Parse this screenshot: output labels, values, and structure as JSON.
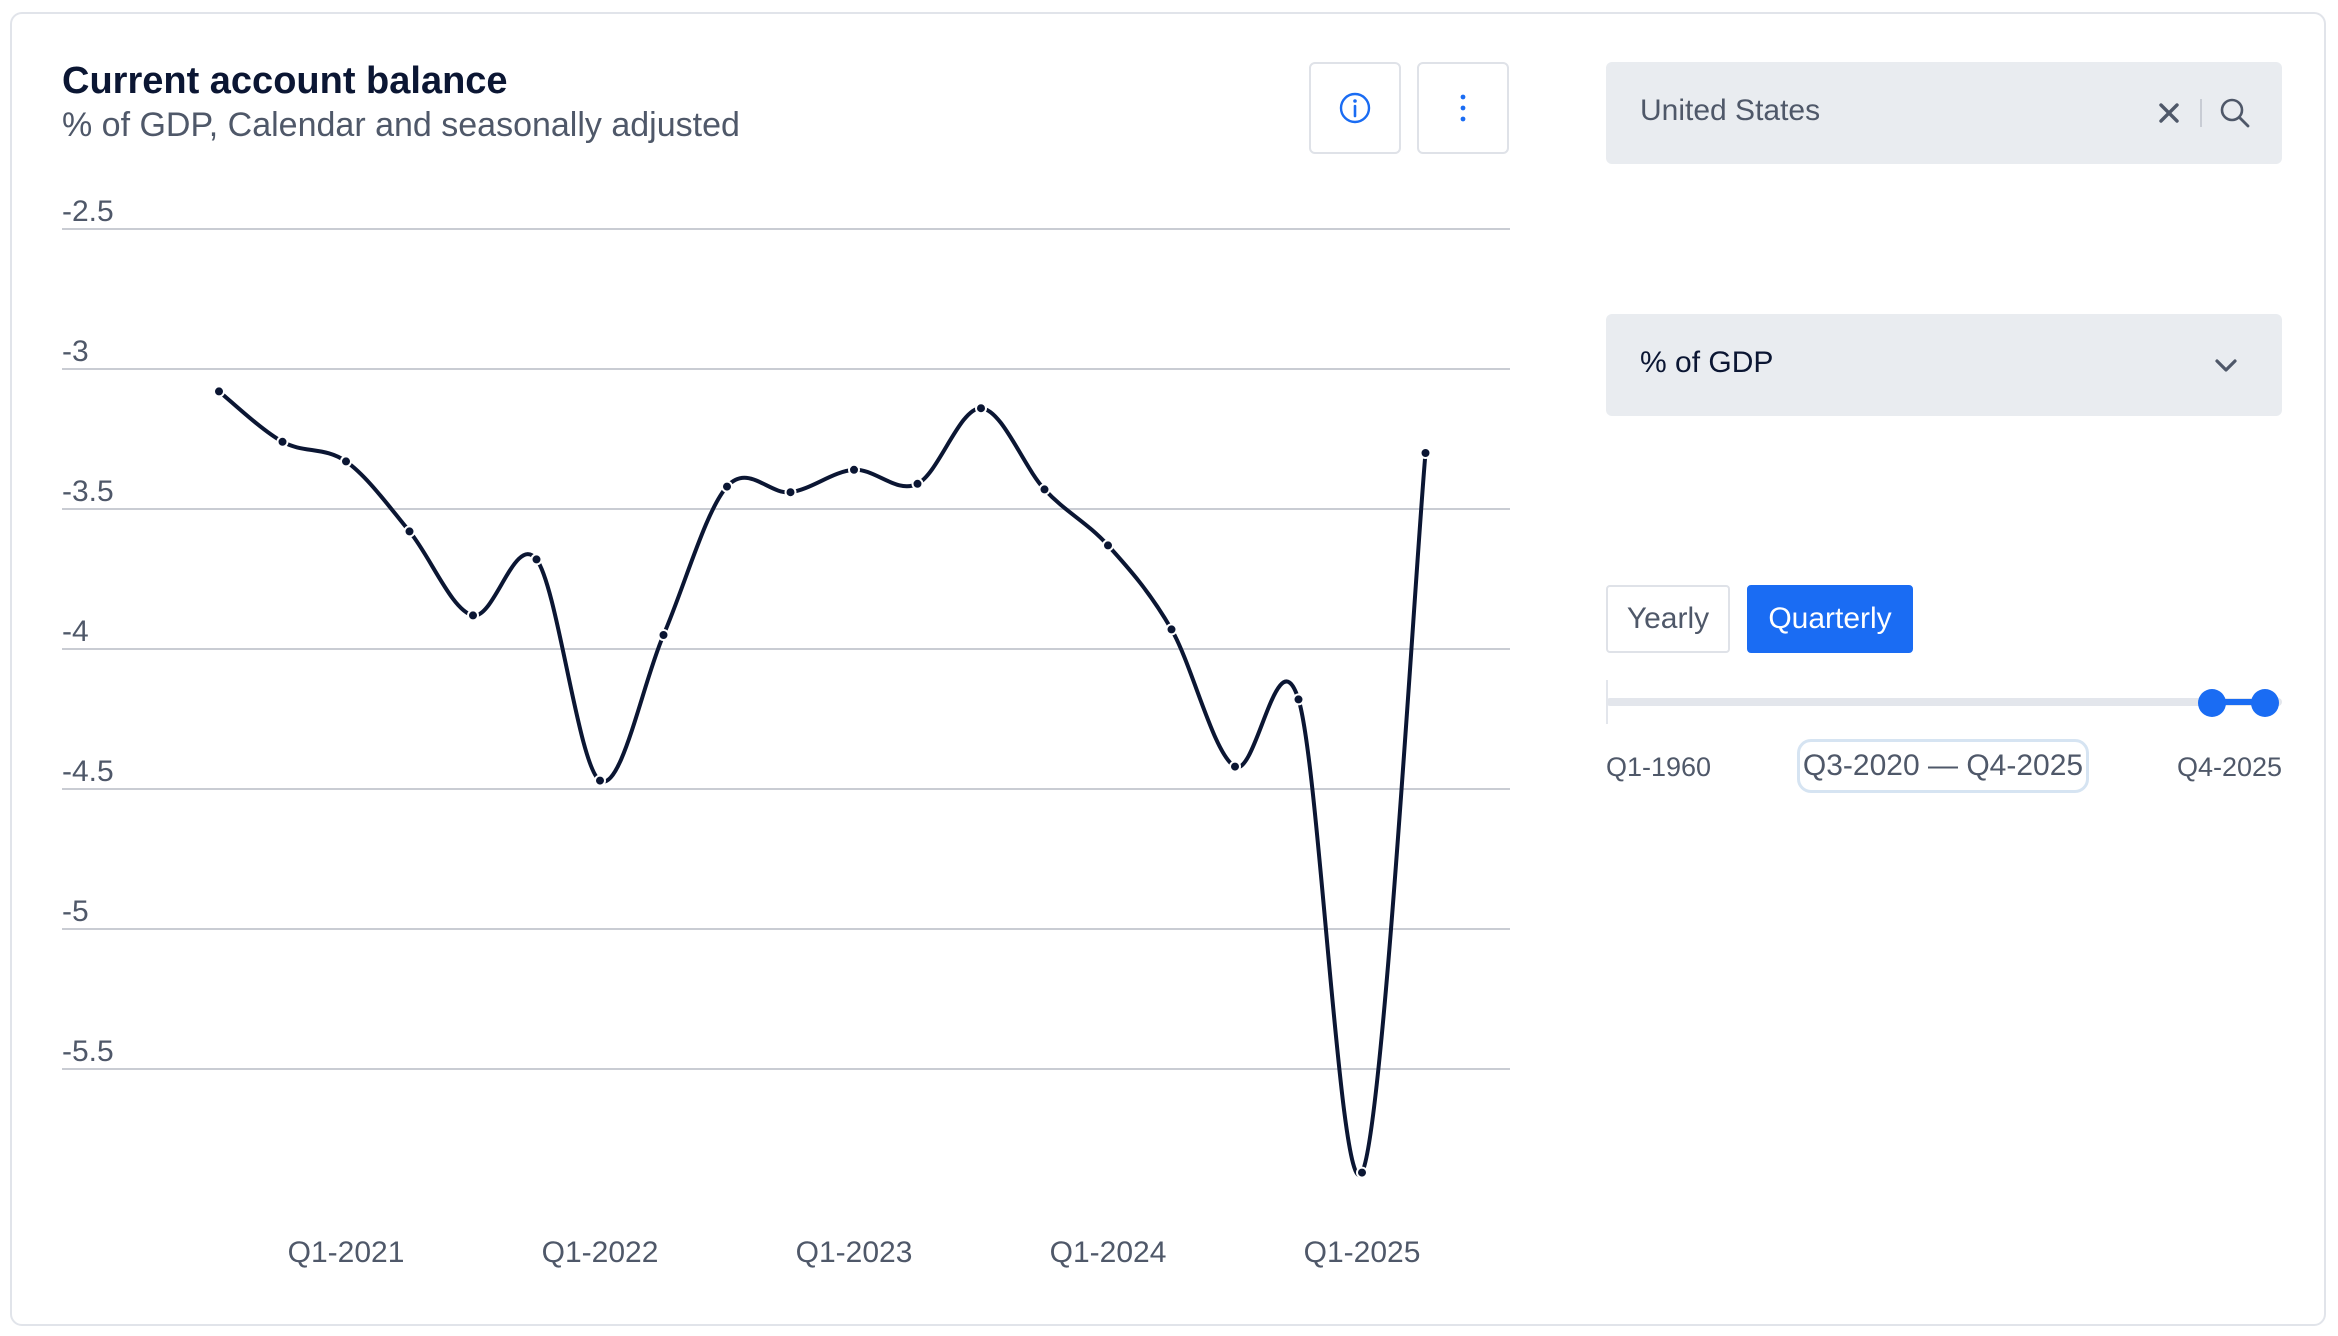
{
  "header": {
    "title": "Current account balance",
    "subtitle": "% of GDP, Calendar and seasonally adjusted"
  },
  "toolbar": {
    "info_icon": "info-icon",
    "more_icon": "vertical-ellipsis-icon"
  },
  "search": {
    "value": "United States",
    "clear_icon": "close-icon",
    "search_icon": "search-icon"
  },
  "unit_select": {
    "selected": "% of GDP",
    "icon": "chevron-down-icon"
  },
  "frequency": {
    "options": [
      "Yearly",
      "Quarterly"
    ],
    "selected": "Quarterly"
  },
  "range": {
    "min_label": "Q1-1960",
    "max_label": "Q4-2025",
    "selected_label": "Q3-2020 — Q4-2025"
  },
  "colors": {
    "accent": "#1a6cf3",
    "line": "#0b1633",
    "grid": "#c9ccd3",
    "panel": "#e9ecf0"
  },
  "chart_data": {
    "type": "line",
    "title": "Current account balance",
    "subtitle": "% of GDP, Calendar and seasonally adjusted",
    "ylim": [
      -6.0,
      -2.5
    ],
    "yticks": [
      -2.5,
      -3,
      -3.5,
      -4,
      -4.5,
      -5,
      -5.5
    ],
    "ytick_labels": [
      "-2.5",
      "-3",
      "-3.5",
      "-4",
      "-4.5",
      "-5",
      "-5.5"
    ],
    "xtick_labels": [
      "Q1-2021",
      "Q1-2022",
      "Q1-2023",
      "Q1-2024",
      "Q1-2025"
    ],
    "xtick_indices": [
      2,
      6,
      10,
      14,
      18
    ],
    "grid": true,
    "legend": "none",
    "series": [
      {
        "values": [
          -3.08,
          -3.26,
          -3.33,
          -3.58,
          -3.88,
          -3.68,
          -4.47,
          -3.95,
          -3.42,
          -3.44,
          -3.36,
          -3.41,
          -3.14,
          -3.43,
          -3.63,
          -3.93,
          -4.42,
          -4.18,
          -5.87,
          -3.3
        ],
        "x": [
          "Q3-2020",
          "Q4-2020",
          "Q1-2021",
          "Q2-2021",
          "Q3-2021",
          "Q4-2021",
          "Q1-2022",
          "Q2-2022",
          "Q3-2022",
          "Q4-2022",
          "Q1-2023",
          "Q2-2023",
          "Q3-2023",
          "Q4-2023",
          "Q1-2024",
          "Q2-2024",
          "Q3-2024",
          "Q4-2024",
          "Q1-2025",
          "Q2-2025"
        ]
      }
    ]
  }
}
